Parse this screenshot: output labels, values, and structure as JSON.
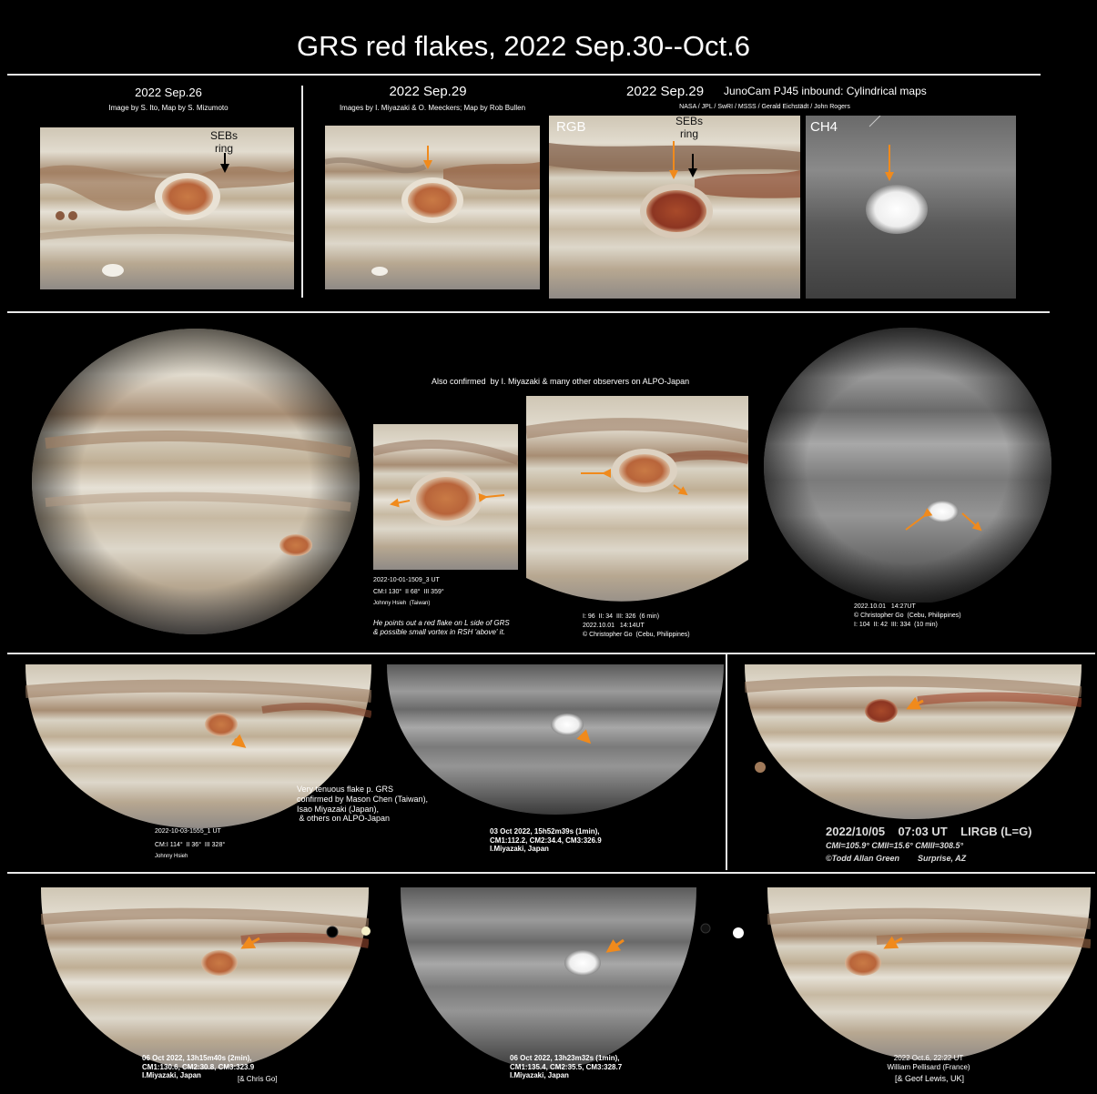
{
  "title": "GRS red flakes, 2022 Sep.30--Oct.6",
  "row1": {
    "panel_a": {
      "date": "2022 Sep.26",
      "credit": "Image by S. Ito, Map by S. Mizumoto",
      "label": "SEBs\nring"
    },
    "panel_b": {
      "date": "2022 Sep.29",
      "credit": "Images by I. Miyazaki & O. Meeckers; Map by Rob Bullen"
    },
    "panel_c": {
      "date": "2022 Sep.29",
      "subtitle": "JunoCam PJ45 inbound: Cylindrical maps",
      "credit": "NASA / JPL / SwRI / MSSS / Gerald Eichstädt / John Rogers",
      "rgb_label": "RGB",
      "ch4_label": "CH4",
      "seb_label": "SEBs\nring"
    }
  },
  "row2": {
    "confirmed": "Also confirmed  by I. Miyazaki & many other observers on ALPO-Japan",
    "hsieh": {
      "line1": "2022-10-01-1509_3 UT",
      "line2": "CM:I 130°  II 68°  III 359°",
      "line3": "Johnny Hsieh  (Taiwan)",
      "note": "He points out a red flake on L side of GRS\n& possible small vortex in RSH 'above' it."
    },
    "go1": {
      "line1": "I: 96  II: 34  III: 326  (6 min)",
      "line2": "2022.10.01   14:14UT",
      "line3": "© Christopher Go  (Cebu, Philippines)"
    },
    "go2": {
      "line1": "2022.10.01   14:27UT",
      "line2": "© Christopher Go  (Cebu, Philippines)",
      "line3": "I: 104  II: 42  III: 334  (10 min)"
    }
  },
  "row3": {
    "hsieh": {
      "line1": "2022-10-03-1555_1 UT",
      "line2": "CM:I 114°  II 36°  III 328°",
      "line3": "Johnny Hsieh"
    },
    "tenuous": "Very tenuous flake p. GRS\nconfirmed by Mason Chen (Taiwan),\nIsao Miyazaki (Japan),\n & others on ALPO-Japan",
    "miyazaki": "03 Oct 2022, 15h52m39s (1min),\nCM1:112.2, CM2:34.4, CM3:326.9\nI.Miyazaki, Japan",
    "green": {
      "line1": "2022/10/05    07:03 UT    LIRGB (L=G)",
      "line2": "CMI=105.9° CMII=15.6° CMIII=308.5°",
      "line3": "©Todd Allan Green        Surprise, AZ"
    }
  },
  "row4": {
    "miyazaki1": "06 Oct 2022, 13h15m40s (2min),\nCM1:130.6, CM2:30.8, CM3:323.9\nI.Miyazaki, Japan",
    "chris": "[& Chris Go]",
    "miyazaki2": "06 Oct 2022, 13h23m32s (1min),\nCM1:135.4, CM2:35.5, CM3:328.7\nI.Miyazaki, Japan",
    "pellisard": "2022 Oct.6, 22:22 UT\nWilliam Pellisard (France)",
    "lewis": "[& Geof Lewis, UK]"
  },
  "colors": {
    "background": "#000000",
    "arrow": "#f08a1c",
    "rule": "#e8e8e8",
    "grs": "#b8643a"
  }
}
